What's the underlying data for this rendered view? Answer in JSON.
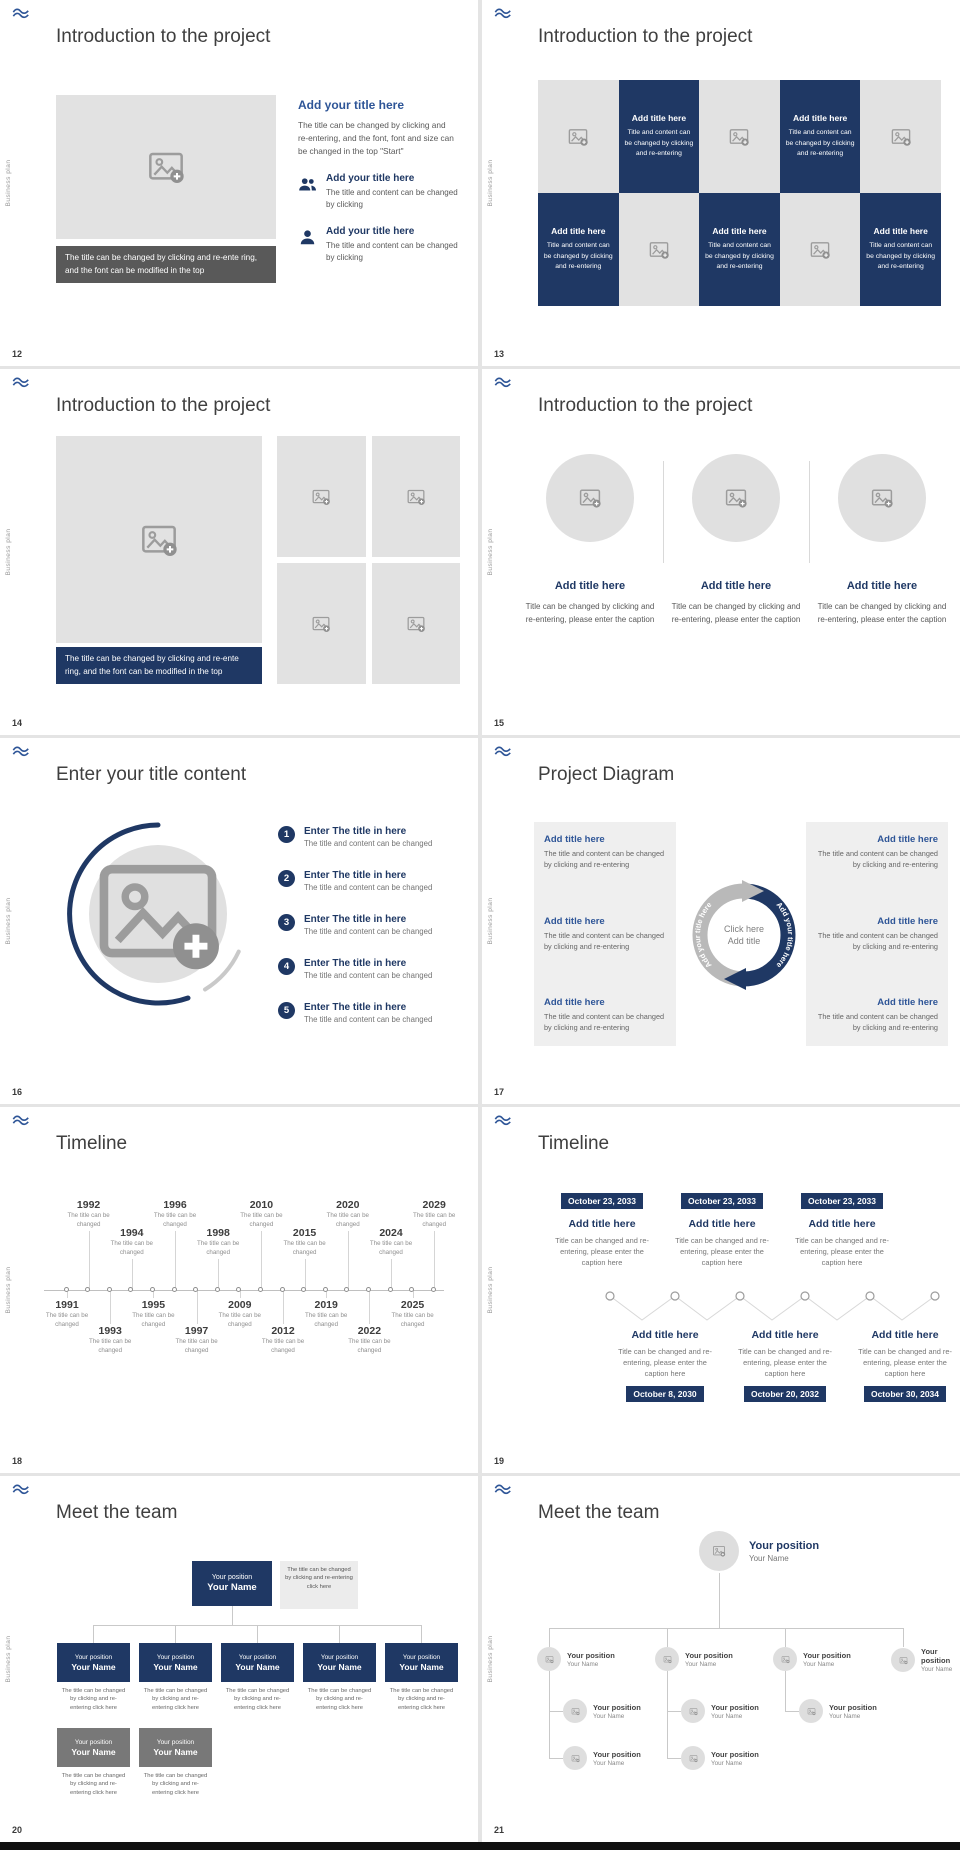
{
  "palette": {
    "navy": "#1f3864",
    "accent_blue": "#2e5597",
    "caption_gray": "#595959",
    "placeholder_gray": "#e2e2e2",
    "page_background": "#e4e4e4"
  },
  "icons": {
    "image-placeholder": "picture frame with plus badge",
    "person": "single user silhouette",
    "people": "two user silhouettes",
    "logo": "blue wave brand mark"
  },
  "common": {
    "side_label": "Business plan"
  },
  "slides": {
    "s12": {
      "number": "12",
      "title": "Introduction to the project",
      "image_caption": "The title can be changed by clicking and re-ente ring, and the font can be modified in the top",
      "heading": "Add your title here",
      "paragraph": "The title can be changed by clicking and re-entering, and the font, font and size can be changed in the top \"Start\"",
      "items": [
        {
          "heading": "Add your title here",
          "text": "The title and content can be changed by clicking"
        },
        {
          "heading": "Add your title here",
          "text": "The title and content can be changed by clicking"
        }
      ]
    },
    "s13": {
      "number": "13",
      "title": "Introduction to the project",
      "cell_heading": "Add title here",
      "cell_text": "Title and content can be changed by clicking and re-entering"
    },
    "s14": {
      "number": "14",
      "title": "Introduction to the project",
      "image_caption": "The title can be changed by clicking and re-ente ring, and the font can be modified in the top"
    },
    "s15": {
      "number": "15",
      "title": "Introduction to the project",
      "items": [
        {
          "heading": "Add title here",
          "text": "Title can be changed by clicking and re-entering, please enter the caption"
        },
        {
          "heading": "Add title here",
          "text": "Title can be changed by clicking and re-entering, please enter the caption"
        },
        {
          "heading": "Add title here",
          "text": "Title can be changed by clicking and re-entering, please enter the caption"
        }
      ]
    },
    "s16": {
      "number": "16",
      "title": "Enter your title content",
      "items": [
        {
          "num": "1",
          "heading": "Enter The title in here",
          "text": "The title and content can be changed"
        },
        {
          "num": "2",
          "heading": "Enter The title in here",
          "text": "The title and content can be changed"
        },
        {
          "num": "3",
          "heading": "Enter The title in here",
          "text": "The title and content can be changed"
        },
        {
          "num": "4",
          "heading": "Enter The title in here",
          "text": "The title and content can be changed"
        },
        {
          "num": "5",
          "heading": "Enter The title in here",
          "text": "The title and content can be changed"
        }
      ]
    },
    "s17": {
      "number": "17",
      "title": "Project Diagram",
      "center_line1": "Click here",
      "center_line2": "Add title",
      "arc_label": "Add your title here",
      "left_items": [
        {
          "heading": "Add title here",
          "text": "The title and content can be changed by clicking and re-entering"
        },
        {
          "heading": "Add title here",
          "text": "The title and content can be changed by clicking and re-entering"
        },
        {
          "heading": "Add title here",
          "text": "The title and content can be changed by clicking and re-entering"
        }
      ],
      "right_items": [
        {
          "heading": "Add title here",
          "text": "The title and content can be changed by clicking and re-entering"
        },
        {
          "heading": "Add title here",
          "text": "The title and content can be changed by clicking and re-entering"
        },
        {
          "heading": "Add title here",
          "text": "The title and content can be changed by clicking and re-entering"
        }
      ]
    },
    "s18": {
      "number": "18",
      "title": "Timeline",
      "caption": "The title can be changed",
      "years": [
        "1991",
        "1992",
        "1993",
        "1994",
        "1995",
        "1996",
        "1997",
        "1998",
        "2009",
        "2010",
        "2012",
        "2015",
        "2019",
        "2020",
        "2022",
        "2024",
        "2025",
        "2029"
      ]
    },
    "s19": {
      "number": "19",
      "title": "Timeline",
      "top_items": [
        {
          "date": "October 23, 2033",
          "heading": "Add title here",
          "text": "Title can be changed and re-entering, please enter the caption here"
        },
        {
          "date": "October 23, 2033",
          "heading": "Add title here",
          "text": "Title can be changed and re-entering, please enter the caption here"
        },
        {
          "date": "October 23, 2033",
          "heading": "Add title here",
          "text": "Title can be changed and re-entering, please enter the caption here"
        }
      ],
      "bottom_items": [
        {
          "heading": "Add title here",
          "text": "Title can be changed and re-entering, please enter the caption here",
          "date": "October 8, 2030"
        },
        {
          "heading": "Add title here",
          "text": "Title can be changed and re-entering, please enter the caption here",
          "date": "October 20, 2032"
        },
        {
          "heading": "Add title here",
          "text": "Title can be changed and re-entering, please enter the caption here",
          "date": "October 30, 2034"
        }
      ]
    },
    "s20": {
      "number": "20",
      "title": "Meet the team",
      "root": {
        "position": "Your position",
        "name": "Your Name"
      },
      "root_note": "The title can be changed by clicking and re-entering click here",
      "box_caption": "The title can be changed by clicking and re-entering click here",
      "boxes": [
        {
          "position": "Your position",
          "name": "Your Name"
        },
        {
          "position": "Your position",
          "name": "Your Name"
        },
        {
          "position": "Your position",
          "name": "Your Name"
        },
        {
          "position": "Your position",
          "name": "Your Name"
        },
        {
          "position": "Your position",
          "name": "Your Name"
        }
      ],
      "sub_boxes": [
        {
          "position": "Your position",
          "name": "Your Name"
        },
        {
          "position": "Your position",
          "name": "Your Name"
        }
      ]
    },
    "s21": {
      "number": "21",
      "title": "Meet the team",
      "root": {
        "position": "Your position",
        "name": "Your Name"
      },
      "level2": [
        {
          "position": "Your position",
          "name": "Your Name"
        },
        {
          "position": "Your position",
          "name": "Your Name"
        },
        {
          "position": "Your position",
          "name": "Your Name"
        },
        {
          "position": "Your position",
          "name": "Your Name"
        }
      ],
      "level3": [
        {
          "position": "Your position",
          "name": "Your Name"
        },
        {
          "position": "Your position",
          "name": "Your Name"
        },
        {
          "position": "Your position",
          "name": "Your Name"
        }
      ],
      "level4": [
        {
          "position": "Your position",
          "name": "Your Name"
        },
        {
          "position": "Your position",
          "name": "Your Name"
        }
      ]
    }
  }
}
